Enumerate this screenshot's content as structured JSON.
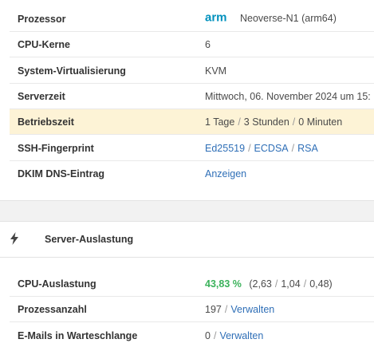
{
  "info": {
    "rows": [
      {
        "label": "Prozessor",
        "value": "Neoverse-N1 (arm64)",
        "logo_text": "arm"
      },
      {
        "label": "CPU-Kerne",
        "value": "6"
      },
      {
        "label": "System-Virtualisierung",
        "value": "KVM"
      },
      {
        "label": "Serverzeit",
        "value": "Mittwoch, 06. November 2024 um 15:"
      },
      {
        "label": "Betriebszeit",
        "days": "1 Tage",
        "hours": "3 Stunden",
        "minutes": "0 Minuten"
      },
      {
        "label": "SSH-Fingerprint",
        "links": [
          "Ed25519",
          "ECDSA",
          "RSA"
        ]
      },
      {
        "label": "DKIM DNS-Eintrag",
        "link": "Anzeigen"
      }
    ]
  },
  "load": {
    "title": "Server-Auslastung",
    "icon": "bolt-icon",
    "rows": [
      {
        "label": "CPU-Auslastung",
        "percent": "43,83 %",
        "avg1": "2,63",
        "avg5": "1,04",
        "avg15": "0,48"
      },
      {
        "label": "Prozessanzahl",
        "count": "197",
        "link": "Verwalten"
      },
      {
        "label": "E-Mails in Warteschlange",
        "count": "0",
        "link": "Verwalten"
      }
    ]
  },
  "colors": {
    "accent_link": "#2f6fb7",
    "success": "#3bb25b",
    "highlight_row": "#fdf3d6",
    "arm_brand": "#0091bd"
  }
}
